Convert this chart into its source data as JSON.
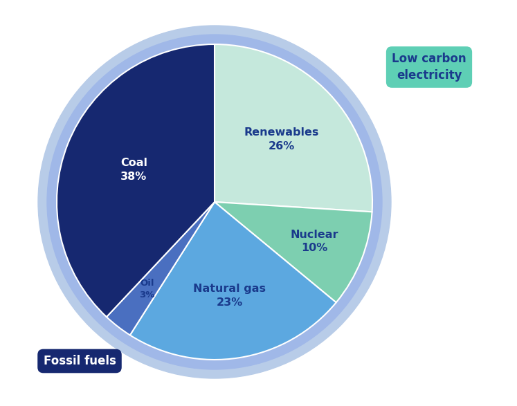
{
  "slices": [
    {
      "label": "Renewables",
      "pct": "26%",
      "value": 26,
      "color": "#c5e8dc",
      "text_color": "#1a3a8c"
    },
    {
      "label": "Nuclear",
      "pct": "10%",
      "value": 10,
      "color": "#7dcfb0",
      "text_color": "#1a3a8c"
    },
    {
      "label": "Natural gas",
      "pct": "23%",
      "value": 23,
      "color": "#5ca8e0",
      "text_color": "#1a3a8c"
    },
    {
      "label": "Oil",
      "pct": "3%",
      "value": 3,
      "color": "#4a6fc0",
      "text_color": "#1a3a8c"
    },
    {
      "label": "Coal",
      "pct": "38%",
      "value": 38,
      "color": "#162870",
      "text_color": "#ffffff"
    }
  ],
  "outer_ring_color": "#a0b8e8",
  "outer_ring_color2": "#b8cce8",
  "bg_color": "#ffffff",
  "label_fossil_fuels": "Fossil fuels",
  "label_fossil_bg": "#162870",
  "label_fossil_text": "#ffffff",
  "label_low_carbon": "Low carbon\nelectricity",
  "label_low_carbon_bg": "#5ecfb5",
  "label_low_carbon_text": "#1a3a8c",
  "start_angle": 90,
  "figsize": [
    7.47,
    5.87
  ],
  "dpi": 100
}
